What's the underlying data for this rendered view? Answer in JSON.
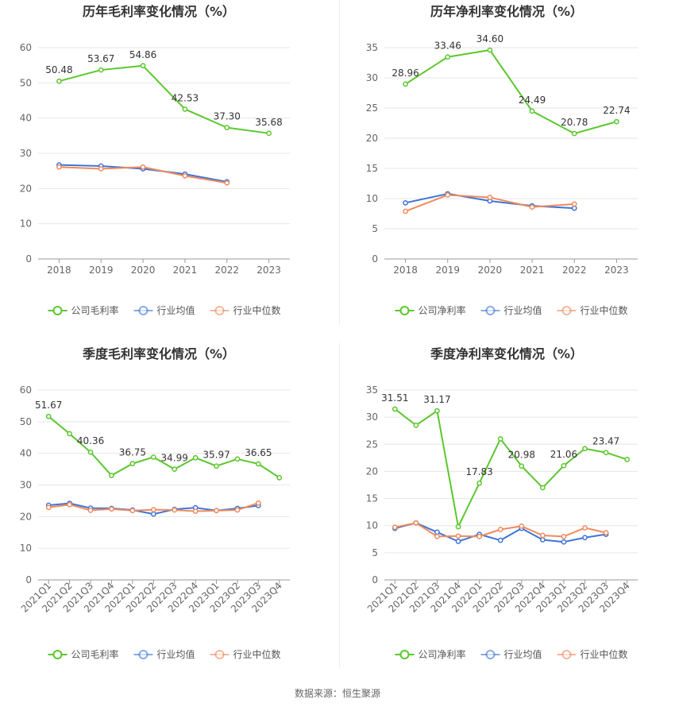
{
  "source": "数据来源：恒生聚源",
  "colors": {
    "company": "#5bc72d",
    "avg": "#3f74d6",
    "median": "#f08a5d"
  },
  "chart_data": [
    {
      "type": "line",
      "title": "历年毛利率变化情况（%）",
      "categories": [
        "2018",
        "2019",
        "2020",
        "2021",
        "2022",
        "2023"
      ],
      "ylim": [
        0,
        60
      ],
      "yticks": [
        0,
        10,
        20,
        30,
        40,
        50,
        60
      ],
      "grid": true,
      "legend_position": "bottom",
      "series": [
        {
          "name": "公司毛利率",
          "role": "company",
          "values": [
            50.48,
            53.67,
            54.86,
            42.53,
            37.3,
            35.68
          ],
          "labels": [
            "50.48",
            "53.67",
            "54.86",
            "42.53",
            "37.30",
            "35.68"
          ]
        },
        {
          "name": "行业均值",
          "role": "avg",
          "values": [
            26.7,
            26.4,
            25.6,
            24.1,
            21.9,
            null
          ]
        },
        {
          "name": "行业中位数",
          "role": "median",
          "values": [
            26.1,
            25.6,
            26.1,
            23.6,
            21.6,
            null
          ]
        }
      ]
    },
    {
      "type": "line",
      "title": "历年净利率变化情况（%）",
      "categories": [
        "2018",
        "2019",
        "2020",
        "2021",
        "2022",
        "2023"
      ],
      "ylim": [
        0,
        35
      ],
      "yticks": [
        0,
        5,
        10,
        15,
        20,
        25,
        30,
        35
      ],
      "grid": true,
      "legend_position": "bottom",
      "series": [
        {
          "name": "公司净利率",
          "role": "company",
          "values": [
            28.96,
            33.46,
            34.6,
            24.49,
            20.78,
            22.74
          ],
          "labels": [
            "28.96",
            "33.46",
            "34.60",
            "24.49",
            "20.78",
            "22.74"
          ]
        },
        {
          "name": "行业均值",
          "role": "avg",
          "values": [
            9.3,
            10.8,
            9.6,
            8.8,
            8.4,
            null
          ]
        },
        {
          "name": "行业中位数",
          "role": "median",
          "values": [
            7.9,
            10.6,
            10.2,
            8.6,
            9.1,
            null
          ]
        }
      ]
    },
    {
      "type": "line",
      "title": "季度毛利率变化情况（%）",
      "categories": [
        "2021Q1",
        "2021Q2",
        "2021Q3",
        "2021Q4",
        "2022Q1",
        "2022Q2",
        "2022Q3",
        "2022Q4",
        "2023Q1",
        "2023Q2",
        "2023Q3",
        "2023Q4"
      ],
      "ylim": [
        0,
        60
      ],
      "yticks": [
        0,
        10,
        20,
        30,
        40,
        50,
        60
      ],
      "grid": true,
      "legend_position": "bottom",
      "series": [
        {
          "name": "公司毛利率",
          "role": "company",
          "values": [
            51.67,
            46.2,
            40.36,
            33.0,
            36.75,
            38.8,
            34.99,
            38.6,
            35.97,
            38.2,
            36.65,
            32.3
          ],
          "labels": [
            "51.67",
            "",
            "40.36",
            "",
            "36.75",
            "",
            "34.99",
            "",
            "35.97",
            "",
            "36.65",
            ""
          ]
        },
        {
          "name": "行业均值",
          "role": "avg",
          "values": [
            23.6,
            24.2,
            22.7,
            22.6,
            22.1,
            20.8,
            22.3,
            22.8,
            21.9,
            22.6,
            23.5,
            null
          ]
        },
        {
          "name": "行业中位数",
          "role": "median",
          "values": [
            22.9,
            23.8,
            22.0,
            22.4,
            21.9,
            22.2,
            22.1,
            21.7,
            21.9,
            22.1,
            24.3,
            null
          ]
        }
      ]
    },
    {
      "type": "line",
      "title": "季度净利率变化情况（%）",
      "categories": [
        "2021Q1",
        "2021Q2",
        "2021Q3",
        "2021Q4",
        "2022Q1",
        "2022Q2",
        "2022Q3",
        "2022Q4",
        "2023Q1",
        "2023Q2",
        "2023Q3",
        "2023Q4"
      ],
      "ylim": [
        0,
        35
      ],
      "yticks": [
        0,
        5,
        10,
        15,
        20,
        25,
        30,
        35
      ],
      "grid": true,
      "legend_position": "bottom",
      "series": [
        {
          "name": "公司净利率",
          "role": "company",
          "values": [
            31.51,
            28.5,
            31.17,
            9.8,
            17.83,
            26.0,
            20.98,
            17.0,
            21.06,
            24.2,
            23.47,
            22.2
          ],
          "labels": [
            "31.51",
            "",
            "31.17",
            "",
            "17.83",
            "",
            "20.98",
            "",
            "21.06",
            "",
            "23.47",
            ""
          ]
        },
        {
          "name": "行业均值",
          "role": "avg",
          "values": [
            9.5,
            10.5,
            8.8,
            7.1,
            8.4,
            7.3,
            9.5,
            7.4,
            7.0,
            7.8,
            8.4,
            null
          ]
        },
        {
          "name": "行业中位数",
          "role": "median",
          "values": [
            9.7,
            10.5,
            8.0,
            8.1,
            8.0,
            9.3,
            9.9,
            8.2,
            8.0,
            9.6,
            8.7,
            null
          ]
        }
      ]
    }
  ]
}
